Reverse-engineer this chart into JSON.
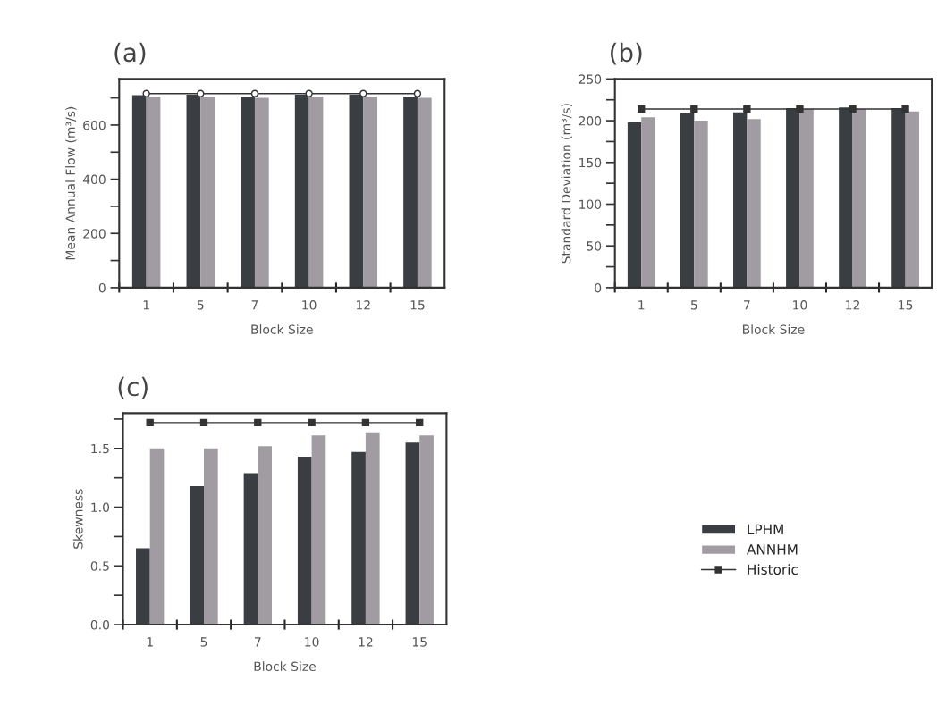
{
  "chart_data": [
    {
      "type": "bar",
      "title": "(a)",
      "xlabel": "Block Size",
      "ylabel": "Mean Annual Flow (m³/s)",
      "categories": [
        "1",
        "5",
        "7",
        "10",
        "12",
        "15"
      ],
      "series": [
        {
          "color": "#3a3d42",
          "values": [
            710,
            712,
            705,
            712,
            712,
            705
          ]
        },
        {
          "color": "#a09ca2",
          "values": [
            705,
            705,
            700,
            705,
            705,
            700
          ]
        },
        {
          "type": "line",
          "color": "#333333",
          "marker": "circle",
          "values": [
            716,
            716,
            716,
            716,
            716,
            716
          ]
        }
      ],
      "ylim": [
        0,
        770
      ],
      "yticks": [
        0,
        {
          "value": 100,
          "label": null
        },
        200,
        {
          "value": 300,
          "label": null
        },
        400,
        {
          "value": 500,
          "label": null
        },
        600,
        {
          "value": 700,
          "label": null
        }
      ],
      "grid": false,
      "legend": false
    },
    {
      "type": "bar",
      "title": "(b)",
      "xlabel": "Block Size",
      "ylabel": "Standard Deviation (m³/s)",
      "categories": [
        "1",
        "5",
        "7",
        "10",
        "12",
        "15"
      ],
      "series": [
        {
          "color": "#3a3d42",
          "values": [
            198,
            209,
            210,
            215,
            216,
            215
          ]
        },
        {
          "color": "#a09ca2",
          "values": [
            204,
            200,
            202,
            214,
            214,
            211
          ]
        },
        {
          "type": "line",
          "color": "#333333",
          "marker": "square",
          "values": [
            214,
            214,
            214,
            214,
            214,
            214
          ]
        }
      ],
      "ylim": [
        0,
        250
      ],
      "yticks": [
        0,
        {
          "value": 25,
          "label": null
        },
        50,
        {
          "value": 75,
          "label": null
        },
        100,
        {
          "value": 125,
          "label": null
        },
        150,
        {
          "value": 175,
          "label": null
        },
        200,
        {
          "value": 225,
          "label": null
        },
        250
      ],
      "grid": false,
      "legend": false
    },
    {
      "type": "bar",
      "title": "(c)",
      "xlabel": "Block Size",
      "ylabel": "Skewness",
      "categories": [
        "1",
        "5",
        "7",
        "10",
        "12",
        "15"
      ],
      "series": [
        {
          "name": "LPHM",
          "color": "#3a3d42",
          "values": [
            0.65,
            1.18,
            1.29,
            1.43,
            1.47,
            1.55
          ]
        },
        {
          "name": "ANNHM",
          "color": "#a09ca2",
          "values": [
            1.5,
            1.5,
            1.52,
            1.61,
            1.63,
            1.61
          ]
        },
        {
          "name": "Historic",
          "type": "line",
          "color": "#333333",
          "marker": "square",
          "values": [
            1.72,
            1.72,
            1.72,
            1.72,
            1.72,
            1.72
          ]
        }
      ],
      "ylim": [
        0,
        1.8
      ],
      "yticks": [
        {
          "value": 0,
          "label": "0.0"
        },
        {
          "value": 0.25,
          "label": null
        },
        0.5,
        {
          "value": 0.75,
          "label": null
        },
        {
          "value": 1,
          "label": "1.0"
        },
        {
          "value": 1.25,
          "label": null
        },
        1.5,
        {
          "value": 1.75,
          "label": null
        }
      ],
      "grid": false,
      "legend": "right"
    }
  ]
}
